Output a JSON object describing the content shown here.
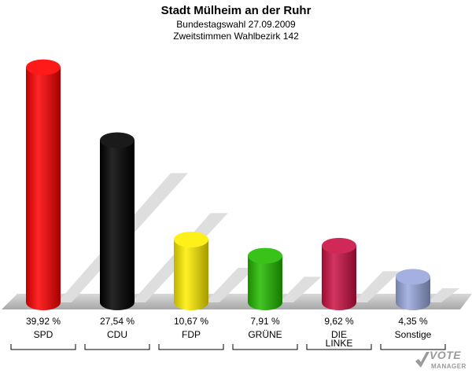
{
  "header": {
    "title": "Stadt Mülheim an der Ruhr",
    "subtitle1": "Bundestagswahl 27.09.2009",
    "subtitle2": "Zweitstimmen Wahlbezirk 142"
  },
  "logo": {
    "line1": "VOTE",
    "line2": "MANAGER"
  },
  "chart_data": {
    "type": "bar",
    "title": "Stadt Mülheim an der Ruhr",
    "categories": [
      "SPD",
      "CDU",
      "FDP",
      "GRÜNE",
      "DIE LINKE",
      "Sonstige"
    ],
    "values": [
      39.92,
      27.54,
      10.67,
      7.91,
      9.62,
      4.35
    ],
    "value_labels": [
      "39,92 %",
      "27,54 %",
      "10,67 %",
      "7,91 %",
      "9,62 %",
      "4,35 %"
    ],
    "colors": [
      "#ff0000",
      "#000000",
      "#ffee00",
      "#22bb00",
      "#cc1144",
      "#9aa8dd"
    ],
    "ylim": [
      0,
      40
    ],
    "grid": false,
    "legend": "none"
  }
}
